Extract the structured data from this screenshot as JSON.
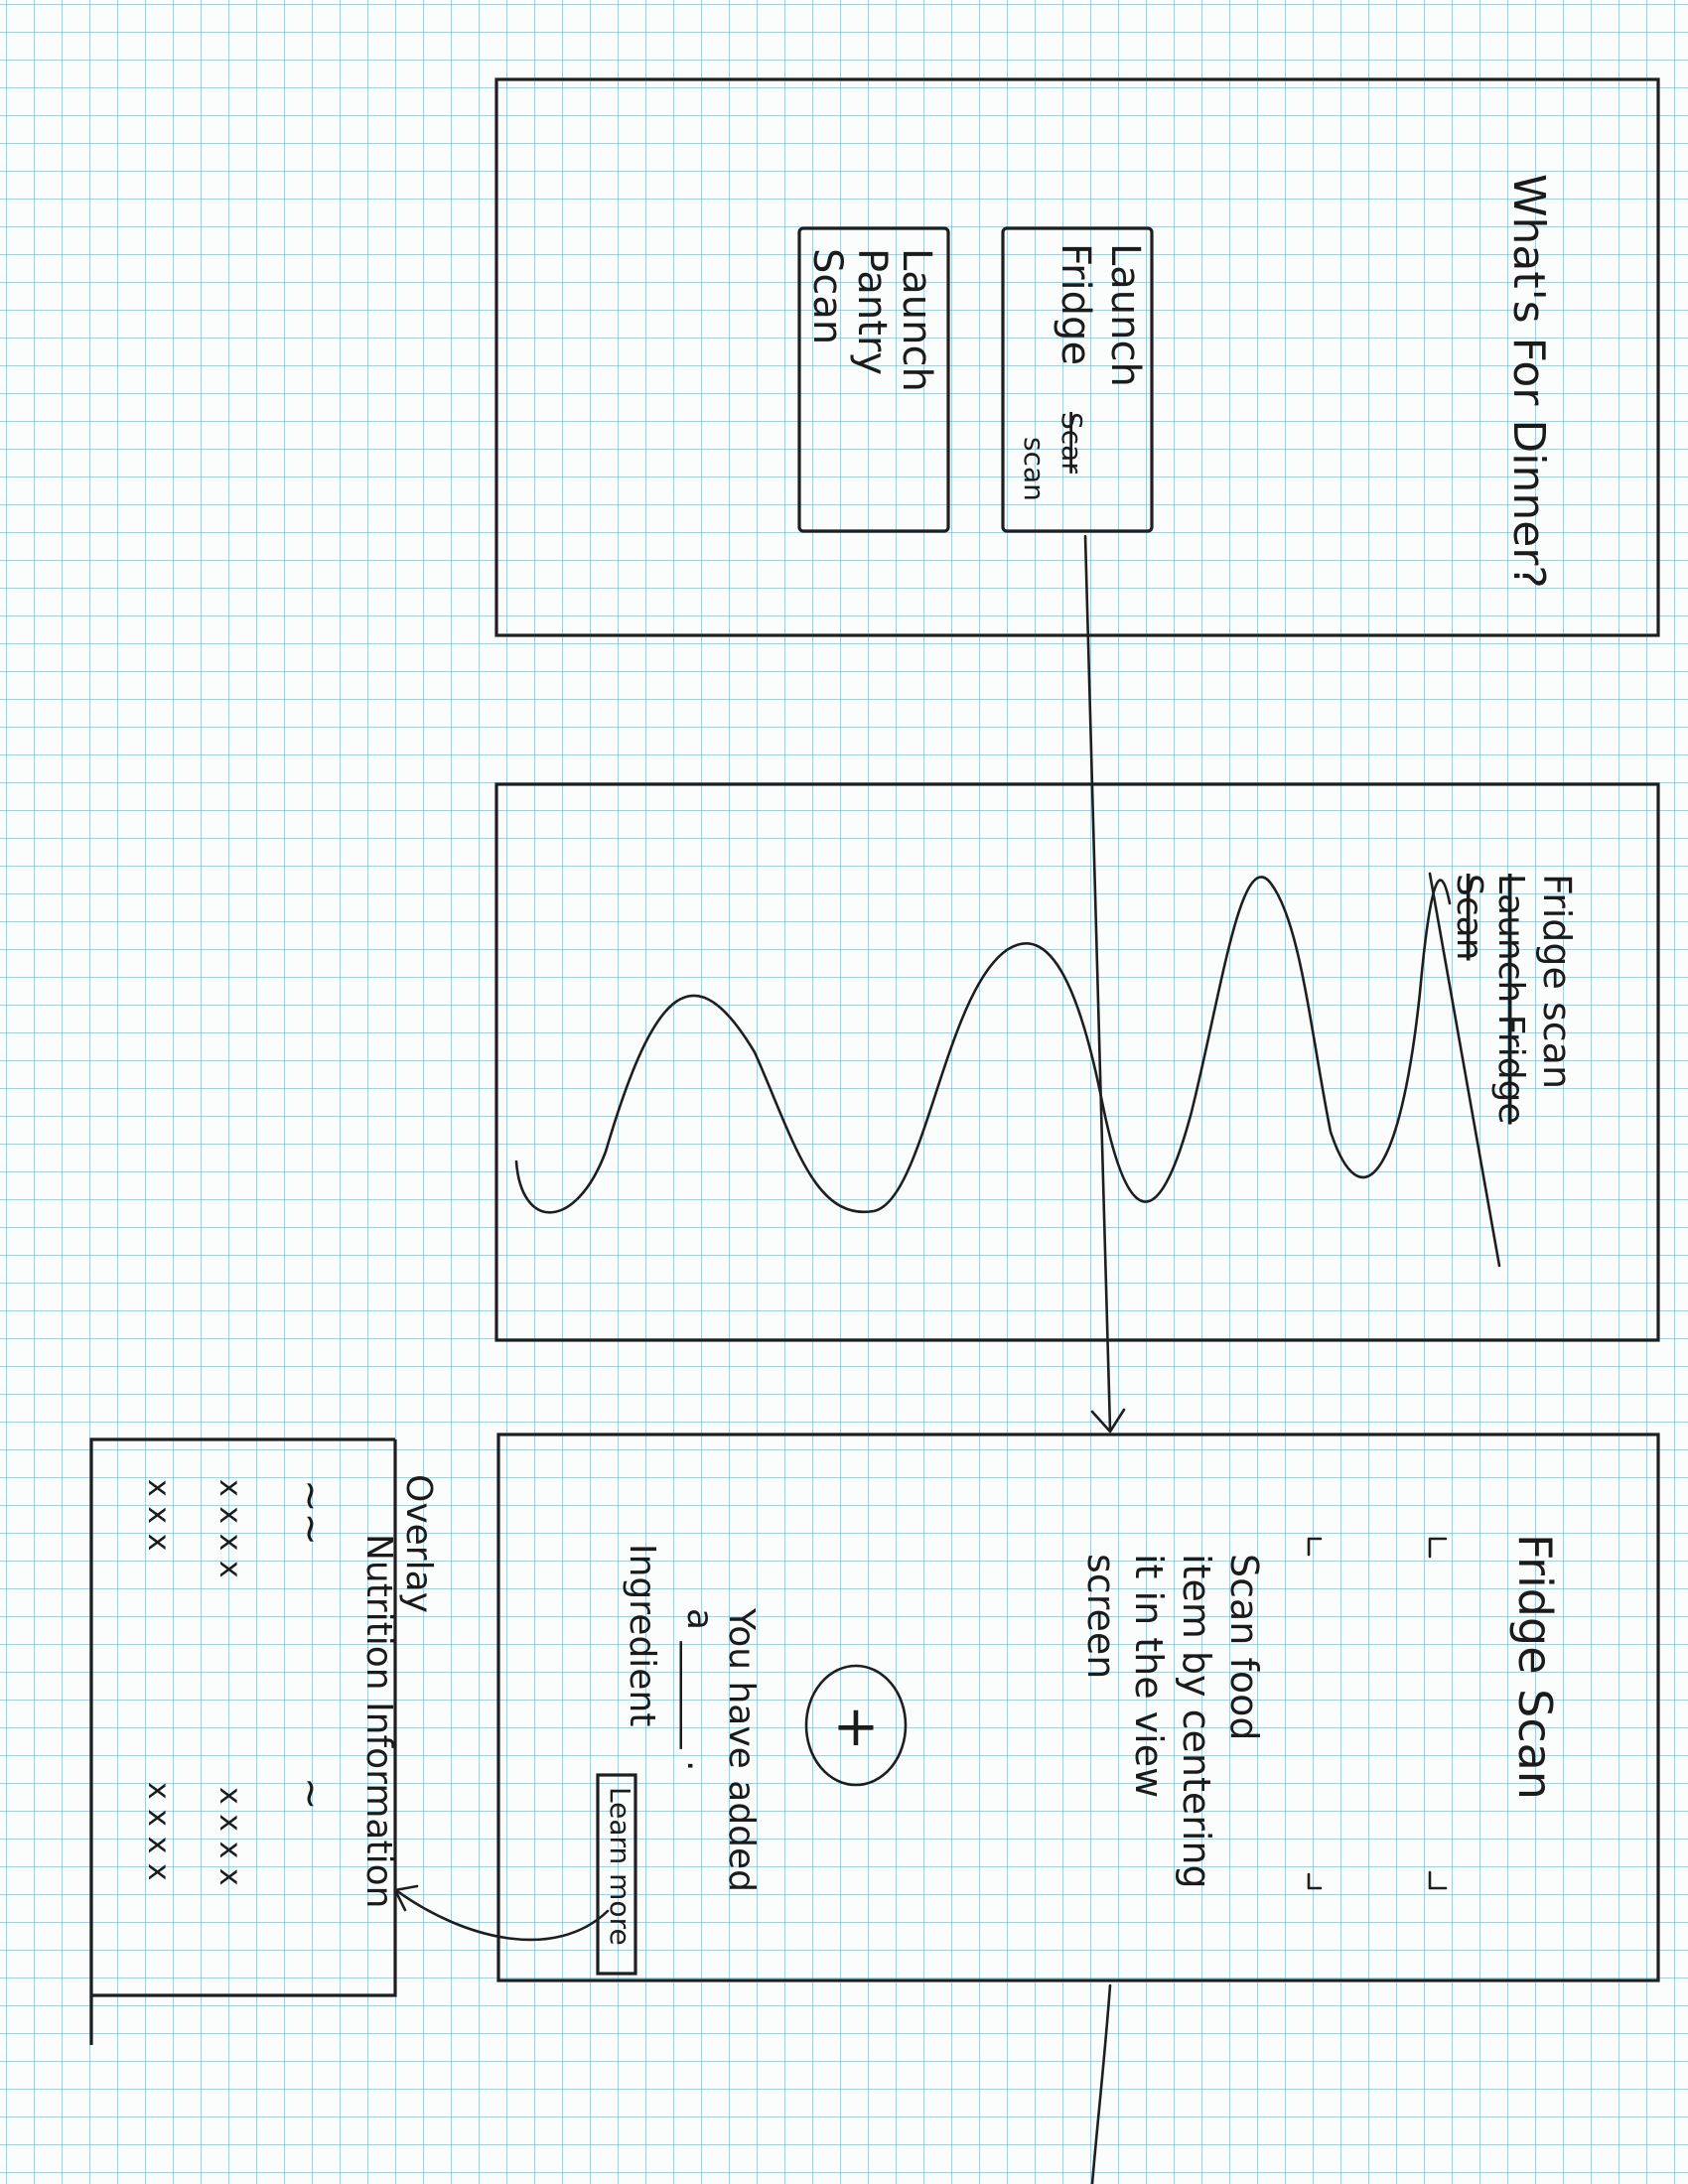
{
  "screen1": {
    "title": "What's For Dinner?",
    "fridge_button": {
      "line1": "Launch",
      "line2": "Fridge",
      "struck": "Scar",
      "line3": "scan"
    },
    "pantry_button": {
      "line1": "Launch",
      "line2": "Pantry",
      "line3": "Scan"
    }
  },
  "screen2": {
    "title_new": "Fridge scan",
    "title_struck_1": "Launch Fridge",
    "title_struck_2": "Scan"
  },
  "screen3": {
    "title": "Fridge Scan",
    "instructions": [
      "Scan food",
      "item by centering",
      "it in the view",
      "screen"
    ],
    "add_symbol": "+",
    "added_message": [
      "You have added",
      "a ______ ."
    ],
    "ingredient_label": "Ingredient",
    "learn_more_label": "Learn more"
  },
  "overlay": {
    "title": "Overlay",
    "subtitle": "Nutrition Information",
    "squiggle_left": "~~",
    "squiggle_right": "~",
    "row1_left": "x x x x",
    "row1_right": "x x x x",
    "row2_left": "x x x",
    "row2_right": "x x x x"
  },
  "colors": {
    "ink": "#1e1e1e",
    "grid": "#5faac3",
    "paper": "#fbfdfd"
  }
}
